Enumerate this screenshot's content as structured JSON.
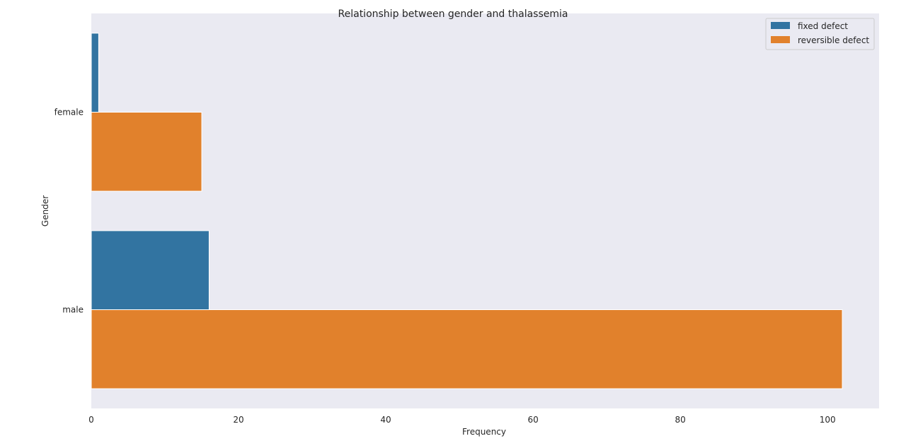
{
  "chart_data": {
    "type": "bar",
    "orientation": "horizontal",
    "title": "Relationship between gender and thalassemia",
    "xlabel": "Frequency",
    "ylabel": "Gender",
    "categories": [
      "female",
      "male"
    ],
    "series": [
      {
        "name": "fixed defect",
        "color": "#3274a1",
        "values": [
          1,
          16
        ]
      },
      {
        "name": "reversible defect",
        "color": "#e1812c",
        "values": [
          15,
          102
        ]
      }
    ],
    "xlim": [
      0,
      107
    ],
    "xticks": [
      0,
      20,
      40,
      60,
      80,
      100
    ],
    "grid": false,
    "legend_position": "top-right",
    "background": "#eaeaf2"
  }
}
